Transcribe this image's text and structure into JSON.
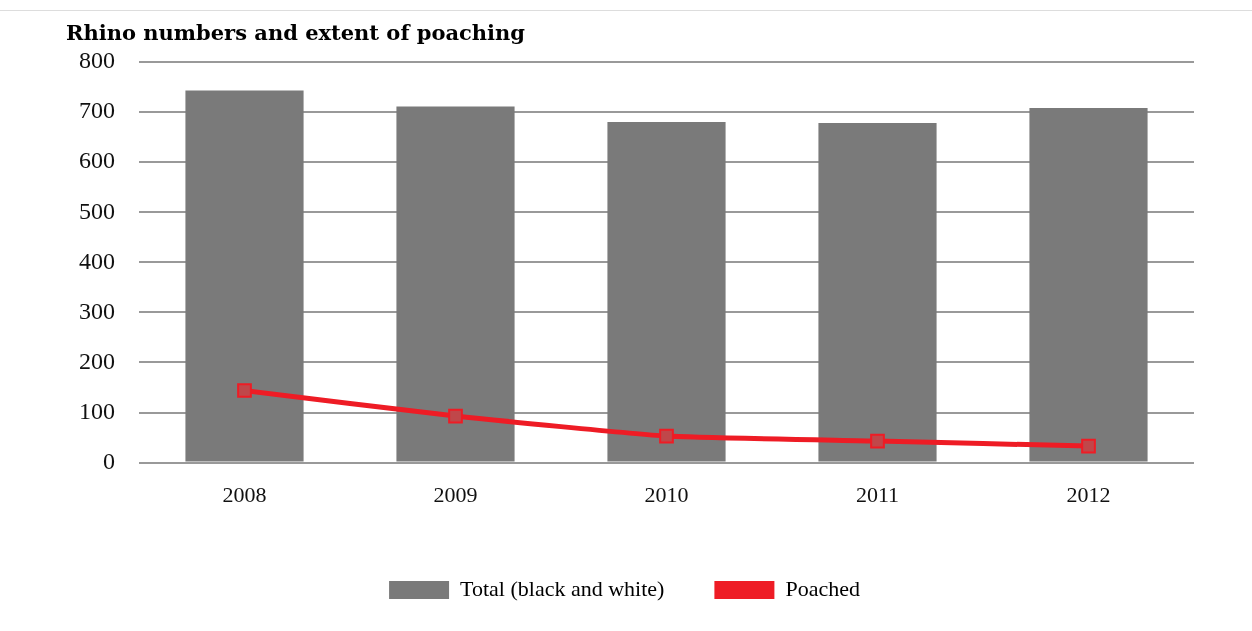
{
  "chart_data": {
    "type": "bar",
    "title": "Rhino numbers and extent of poaching",
    "categories": [
      "2008",
      "2009",
      "2010",
      "2011",
      "2012"
    ],
    "series": [
      {
        "name": "Total (black and white)",
        "color": "#7a7a7a",
        "values": [
          743,
          711,
          680,
          678,
          708
        ]
      },
      {
        "name": "Poached",
        "type": "line",
        "color": "#ee1c25",
        "values": [
          144,
          93,
          53,
          43,
          33
        ]
      }
    ],
    "ylim": [
      0,
      800
    ],
    "yticks": [
      0,
      100,
      200,
      300,
      400,
      500,
      600,
      700,
      800
    ],
    "grid": "y",
    "legend": "bottom",
    "marker": "square",
    "line_style": "solid"
  }
}
